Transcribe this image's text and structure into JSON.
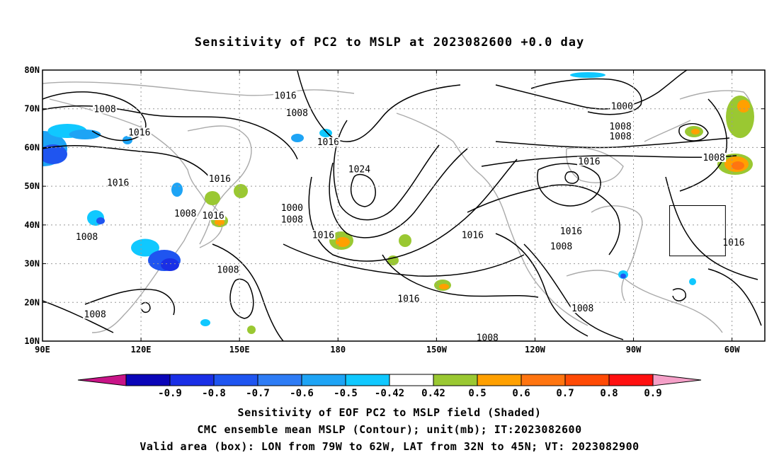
{
  "chart_data": {
    "type": "map",
    "title": "Sensitivity of PC2 to MSLP at 2023082600 +0.0 day",
    "lon_ticks": [
      "90E",
      "120E",
      "150E",
      "180",
      "150W",
      "120W",
      "90W",
      "60W"
    ],
    "lat_ticks": [
      "10N",
      "20N",
      "30N",
      "40N",
      "50N",
      "60N",
      "70N",
      "80N"
    ],
    "lon_range": [
      90,
      310
    ],
    "lat_range": [
      10,
      80
    ],
    "grid": true,
    "valid_box": {
      "lon": [
        281,
        298
      ],
      "lat": [
        32,
        45
      ]
    },
    "colorbar": {
      "levels": [
        "-0.9",
        "-0.8",
        "-0.7",
        "-0.6",
        "-0.5",
        "-0.42",
        "0.42",
        "0.5",
        "0.6",
        "0.7",
        "0.8",
        "0.9"
      ],
      "colors": [
        "#0a05b8",
        "#1a2fe6",
        "#1f55f0",
        "#2e7cf5",
        "#1ea4f5",
        "#10c8ff",
        "#ffffff",
        "#9ac832",
        "#ffa000",
        "#ff7510",
        "#ff4a05",
        "#ff1010",
        "#f5a0c8"
      ],
      "low_extend_color": "#c81487",
      "high_extend_color": "#f5a0c8"
    },
    "contour_labels": [
      {
        "text": "1016",
        "lon": 164.0,
        "lat": 73.0
      },
      {
        "text": "1008",
        "lon": 109.0,
        "lat": 69.5
      },
      {
        "text": "1008",
        "lon": 167.5,
        "lat": 68.5
      },
      {
        "text": "1000",
        "lon": 266.5,
        "lat": 70.2
      },
      {
        "text": "1008",
        "lon": 266.0,
        "lat": 65.0
      },
      {
        "text": "1008",
        "lon": 266.0,
        "lat": 62.5
      },
      {
        "text": "1016",
        "lon": 119.5,
        "lat": 63.5
      },
      {
        "text": "1016",
        "lon": 177.0,
        "lat": 61.0
      },
      {
        "text": "1016",
        "lon": 256.5,
        "lat": 56.0
      },
      {
        "text": "1008",
        "lon": 294.5,
        "lat": 57.0
      },
      {
        "text": "1024",
        "lon": 186.5,
        "lat": 54.0
      },
      {
        "text": "1016",
        "lon": 113.0,
        "lat": 50.5
      },
      {
        "text": "1016",
        "lon": 144.0,
        "lat": 51.5
      },
      {
        "text": "1000",
        "lon": 166.0,
        "lat": 44.0
      },
      {
        "text": "1008",
        "lon": 166.0,
        "lat": 41.0
      },
      {
        "text": "1008",
        "lon": 133.5,
        "lat": 42.5
      },
      {
        "text": "1016",
        "lon": 142.0,
        "lat": 42.0
      },
      {
        "text": "1008",
        "lon": 103.5,
        "lat": 36.5
      },
      {
        "text": "1016",
        "lon": 175.5,
        "lat": 37.0
      },
      {
        "text": "1016",
        "lon": 221.0,
        "lat": 37.0
      },
      {
        "text": "1016",
        "lon": 251.0,
        "lat": 38.0
      },
      {
        "text": "1008",
        "lon": 248.0,
        "lat": 34.0
      },
      {
        "text": "1016",
        "lon": 300.5,
        "lat": 35.0
      },
      {
        "text": "1008",
        "lon": 146.5,
        "lat": 28.0
      },
      {
        "text": "1016",
        "lon": 201.5,
        "lat": 20.5
      },
      {
        "text": "1008",
        "lon": 254.5,
        "lat": 18.0
      },
      {
        "text": "1008",
        "lon": 106.0,
        "lat": 16.5
      },
      {
        "text": "1008",
        "lon": 225.5,
        "lat": 10.5
      }
    ]
  },
  "captions": {
    "line1": "Sensitivity of EOF PC2 to MSLP field (Shaded)",
    "line2": "CMC ensemble mean MSLP (Contour); unit(mb); IT:2023082600",
    "line3": "Valid area (box): LON from 79W to 62W, LAT from 32N to 45N; VT: 2023082900"
  }
}
